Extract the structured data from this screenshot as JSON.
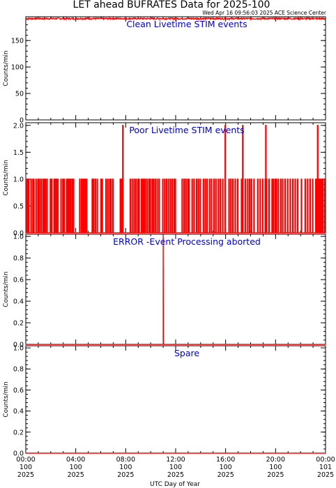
{
  "figure": {
    "title": "LET ahead BUFRATES Data for 2025-100",
    "timestamp": "Wed Apr 16 09:56:03 2025 ACE Science Center",
    "xlabel": "UTC Day of Year"
  },
  "colors": {
    "data": "#ff0000",
    "panel_title": "#0000cc",
    "axes": "#000000"
  },
  "chart_data": [
    {
      "type": "line",
      "title": "Clean Livetime STIM events",
      "ylabel": "Counts/min",
      "ylim": [
        0,
        195
      ],
      "yticks": [
        0,
        50,
        100,
        150
      ],
      "xlim": [
        0,
        24
      ],
      "x_unit": "hours since 2025-100 00:00 UTC",
      "series": [
        {
          "name": "",
          "level": 192,
          "min": 190,
          "max": 193,
          "fluctuating": true
        }
      ]
    },
    {
      "type": "line",
      "title": "Poor Livetime STIM events",
      "ylabel": "Counts/min",
      "ylim": [
        0,
        2.05
      ],
      "yticks": [
        0.0,
        0.5,
        1.0,
        1.5,
        2.0
      ],
      "xlim": [
        0,
        24
      ],
      "x_unit": "hours since 2025-100 00:00 UTC",
      "series": [
        {
          "name": "",
          "ones": [
            0.03,
            0.12,
            0.22,
            0.4,
            0.55,
            0.62,
            0.8,
            0.95,
            1.05,
            1.2,
            1.35,
            1.45,
            1.55,
            1.68,
            1.95,
            2.05,
            2.25,
            2.35,
            2.45,
            2.55,
            2.8,
            2.95,
            3.05,
            3.25,
            3.35,
            3.45,
            3.55,
            3.68,
            3.8,
            4.3,
            4.45,
            4.55,
            4.65,
            4.75,
            4.85,
            5.3,
            5.4,
            5.55,
            5.7,
            6.0,
            6.1,
            6.4,
            6.55,
            6.7,
            6.8,
            6.95,
            7.55,
            7.65,
            8.35,
            8.5,
            8.65,
            8.8,
            8.95,
            9.05,
            9.25,
            9.35,
            9.45,
            9.55,
            9.7,
            9.85,
            9.95,
            10.1,
            10.2,
            10.35,
            10.5,
            10.65,
            10.95,
            11.1,
            11.25,
            11.4,
            11.55,
            11.7,
            11.85,
            11.95,
            12.5,
            12.65,
            12.8,
            12.95,
            13.05,
            13.3,
            13.45,
            13.65,
            13.8,
            13.95,
            14.2,
            14.35,
            14.5,
            14.7,
            14.85,
            15.05,
            15.2,
            15.4,
            15.55,
            15.75,
            15.95,
            16.25,
            16.4,
            16.55,
            16.75,
            16.95,
            17.25,
            17.55,
            17.75,
            17.9,
            18.05,
            18.25,
            18.55,
            18.75,
            18.95,
            19.15,
            19.25,
            19.45,
            19.7,
            19.8,
            19.95,
            20.05,
            20.2,
            20.4,
            20.55,
            20.75,
            20.95,
            21.15,
            21.35,
            21.55,
            21.75,
            22.05,
            22.35,
            22.55,
            22.75,
            22.95,
            23.2,
            23.3,
            23.45,
            23.55,
            23.65,
            23.75,
            23.9
          ],
          "twos": [
            7.75,
            15.95,
            17.35,
            19.2,
            23.35
          ]
        }
      ]
    },
    {
      "type": "line",
      "title": "ERROR -Event Processing aborted",
      "ylabel": "Counts/min",
      "ylim": [
        0,
        1.02
      ],
      "yticks": [
        0.0,
        0.2,
        0.4,
        0.6,
        0.8,
        1.0
      ],
      "xlim": [
        0,
        24
      ],
      "x_unit": "hours since 2025-100 00:00 UTC",
      "series": [
        {
          "name": "",
          "spikes": [
            {
              "x": 11.0,
              "y": 1.0
            }
          ]
        }
      ]
    },
    {
      "type": "line",
      "title": "Spare",
      "ylabel": "Counts/min",
      "ylim": [
        0,
        1.02
      ],
      "yticks": [
        0.0,
        0.2,
        0.4,
        0.6,
        0.8,
        1.0
      ],
      "xlim": [
        0,
        24
      ],
      "x_unit": "hours since 2025-100 00:00 UTC",
      "series": [
        {
          "name": "",
          "constant": 0
        }
      ]
    }
  ],
  "xticks": [
    {
      "x": 0,
      "labels": [
        "00:00",
        "100",
        "2025"
      ]
    },
    {
      "x": 4,
      "labels": [
        "04:00",
        "100",
        "2025"
      ]
    },
    {
      "x": 8,
      "labels": [
        "08:00",
        "100",
        "2025"
      ]
    },
    {
      "x": 12,
      "labels": [
        "12:00",
        "100",
        "2025"
      ]
    },
    {
      "x": 16,
      "labels": [
        "16:00",
        "100",
        "2025"
      ]
    },
    {
      "x": 20,
      "labels": [
        "20:00",
        "100",
        "2025"
      ]
    },
    {
      "x": 24,
      "labels": [
        "00:00",
        "101",
        "2025"
      ]
    }
  ]
}
